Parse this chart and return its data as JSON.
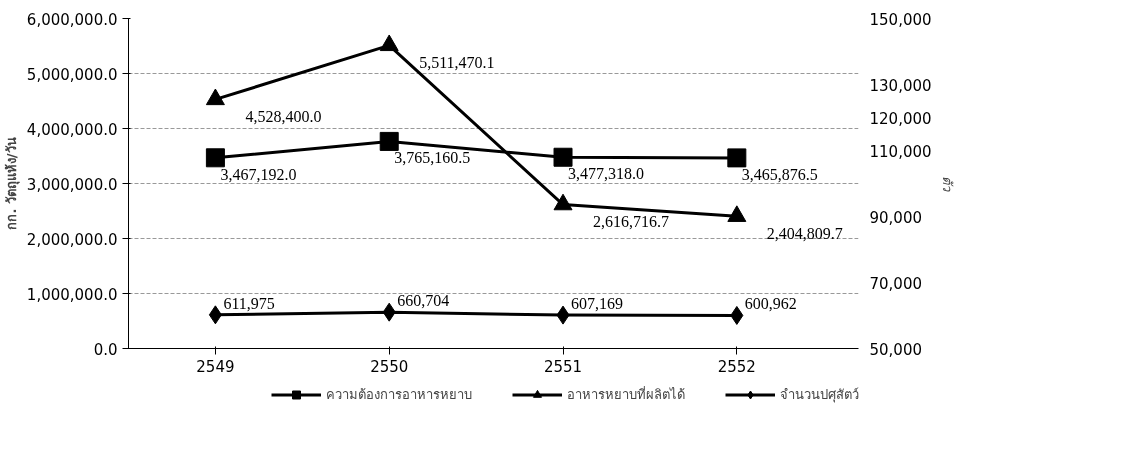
{
  "chart_data": {
    "type": "line",
    "categories": [
      "2549",
      "2550",
      "2551",
      "2552"
    ],
    "ylabel": "กก. วัตถุแห้ง/วัน",
    "y2label": "ตัว",
    "ylim": [
      0,
      6000000
    ],
    "yticks": [
      {
        "value": 0,
        "label": "0.0"
      },
      {
        "value": 1000000,
        "label": "1,000,000.0"
      },
      {
        "value": 2000000,
        "label": "2,000,000.0"
      },
      {
        "value": 3000000,
        "label": "3,000,000.0"
      },
      {
        "value": 4000000,
        "label": "4,000,000.0"
      },
      {
        "value": 5000000,
        "label": "5,000,000.0"
      },
      {
        "value": 6000000,
        "label": "6,000,000.0"
      }
    ],
    "y2lim": [
      50000,
      150000
    ],
    "y2ticks": [
      {
        "value": 50000,
        "label": "50,000"
      },
      {
        "value": 70000,
        "label": "70,000"
      },
      {
        "value": 90000,
        "label": "90,000"
      },
      {
        "value": 110000,
        "label": "110,000"
      },
      {
        "value": 120000,
        "label": "120,000"
      },
      {
        "value": 130000,
        "label": "130,000"
      },
      {
        "value": 150000,
        "label": "150,000"
      }
    ],
    "grid": "y",
    "legend": "bottom",
    "line_style": "solid",
    "series": [
      {
        "name": "ความต้องการอาหารหยาบ",
        "color": "#000000",
        "marker": "square",
        "values": [
          3467192.0,
          3765160.5,
          3477318.0,
          3465876.5
        ],
        "value_labels": [
          "3,467,192.0",
          "3,765,160.5",
          "3,477,318.0",
          "3,465,876.5"
        ]
      },
      {
        "name": "อาหารหยาบที่ผลิตได้",
        "color": "#000000",
        "marker": "triangle",
        "values": [
          4528400.0,
          5511470.1,
          2616716.7,
          2404809.7
        ],
        "value_labels": [
          "4,528,400.0",
          "5,511,470.1",
          "2,616,716.7",
          "2,404,809.7"
        ]
      },
      {
        "name": "จำนวนปศุสัตว์",
        "color": "#000000",
        "marker": "diamond",
        "values": [
          611975,
          660704,
          607169,
          600962
        ],
        "value_labels": [
          "611,975",
          "660,704",
          "607,169",
          "600,962"
        ]
      }
    ]
  }
}
